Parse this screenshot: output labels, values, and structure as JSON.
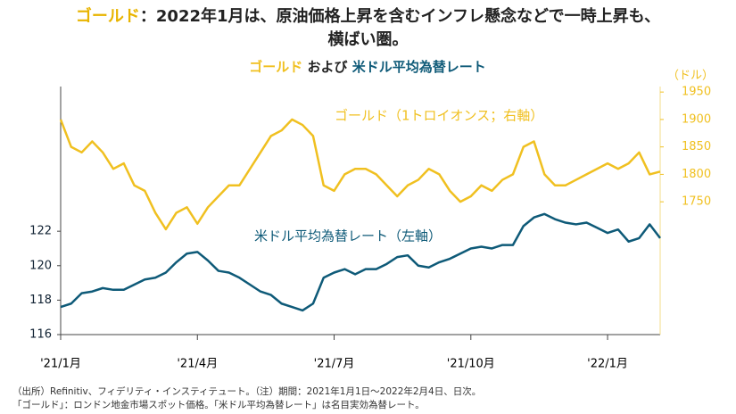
{
  "chart_data": {
    "type": "line",
    "title_highlight": "ゴールド",
    "title_line1": "：2022年1月は、原油価格上昇を含むインフレ懸念などで一時上昇も、",
    "title_line2": "横ばい圏。",
    "subtitle": [
      "ゴールド",
      "および",
      "米ドル平均為替レート"
    ],
    "y2_label": "（ドル）",
    "categories": [
      "'21/1月",
      null,
      null,
      null,
      null,
      null,
      null,
      null,
      null,
      null,
      null,
      null,
      null,
      "'21/4月",
      null,
      null,
      null,
      null,
      null,
      null,
      null,
      null,
      null,
      null,
      null,
      null,
      "'21/7月",
      null,
      null,
      null,
      null,
      null,
      null,
      null,
      null,
      null,
      null,
      null,
      null,
      "'21/10月",
      null,
      null,
      null,
      null,
      null,
      null,
      null,
      null,
      null,
      null,
      null,
      null,
      "'22/1月",
      null,
      null,
      null,
      null,
      null
    ],
    "series": [
      {
        "name": "ゴールド（1トロイオンス；右軸）",
        "color": "#f0c020",
        "axis": "y2",
        "values": [
          1900,
          1850,
          1840,
          1860,
          1840,
          1810,
          1820,
          1780,
          1770,
          1730,
          1700,
          1730,
          1740,
          1710,
          1740,
          1760,
          1780,
          1780,
          1810,
          1840,
          1870,
          1880,
          1900,
          1890,
          1870,
          1780,
          1770,
          1800,
          1810,
          1810,
          1800,
          1780,
          1760,
          1780,
          1790,
          1810,
          1800,
          1770,
          1750,
          1760,
          1780,
          1770,
          1790,
          1800,
          1850,
          1860,
          1800,
          1780,
          1780,
          1790,
          1800,
          1810,
          1820,
          1810,
          1820,
          1840,
          1800,
          1805
        ]
      },
      {
        "name": "米ドル平均為替レート（左軸）",
        "color": "#0e5a78",
        "values": [
          117.6,
          117.8,
          118.4,
          118.5,
          118.7,
          118.6,
          118.6,
          118.9,
          119.2,
          119.3,
          119.6,
          120.2,
          120.7,
          120.8,
          120.3,
          119.7,
          119.6,
          119.3,
          118.9,
          118.5,
          118.3,
          117.8,
          117.6,
          117.4,
          117.8,
          119.3,
          119.6,
          119.8,
          119.5,
          119.8,
          119.8,
          120.1,
          120.5,
          120.6,
          120.0,
          119.9,
          120.2,
          120.4,
          120.7,
          121.0,
          121.1,
          121.0,
          121.2,
          121.2,
          122.3,
          122.8,
          123.0,
          122.7,
          122.5,
          122.4,
          122.5,
          122.2,
          121.9,
          122.1,
          121.4,
          121.6,
          122.4,
          121.6
        ]
      }
    ],
    "ylim": [
      116,
      130.4
    ],
    "yticks": [
      116,
      118,
      120,
      122
    ],
    "y2lim": [
      1508,
      1960
    ],
    "y2ticks": [
      1750,
      1800,
      1850,
      1900,
      1950
    ],
    "footnotes": [
      "（出所）Refinitiv、フィデリティ・インスティテュート。（注）期間：2021年1月1日～2022年2月4日、日次。",
      "「ゴールド」：ロンドン地金市場スポット価格。「米ドル平均為替レート」は名目実効為替レート。"
    ]
  }
}
